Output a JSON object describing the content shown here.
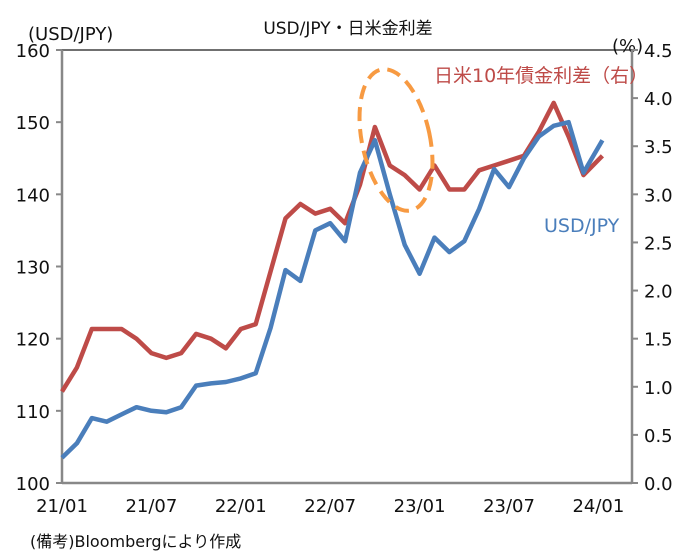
{
  "chart_data": {
    "type": "line",
    "title": "USD/JPY・日米金利差",
    "left_axis": {
      "label": "(USD/JPY)",
      "range": [
        100,
        160
      ],
      "ticks": [
        "100",
        "110",
        "120",
        "130",
        "140",
        "150",
        "160"
      ]
    },
    "right_axis": {
      "label": "(%)",
      "range": [
        0.0,
        4.5
      ],
      "ticks": [
        "0.0",
        "0.5",
        "1.0",
        "1.5",
        "2.0",
        "2.5",
        "3.0",
        "3.5",
        "4.0",
        "4.5"
      ]
    },
    "x_ticks": [
      "21/01",
      "21/07",
      "22/01",
      "22/07",
      "23/01",
      "23/07",
      "24/01"
    ],
    "x_months": [
      "21/01",
      "21/02",
      "21/03",
      "21/04",
      "21/05",
      "21/06",
      "21/07",
      "21/08",
      "21/09",
      "21/10",
      "21/11",
      "21/12",
      "22/01",
      "22/02",
      "22/03",
      "22/04",
      "22/05",
      "22/06",
      "22/07",
      "22/08",
      "22/09",
      "22/10",
      "22/11",
      "22/12",
      "23/01",
      "23/02",
      "23/03",
      "23/04",
      "23/05",
      "23/06",
      "23/07",
      "23/08",
      "23/09",
      "23/10",
      "23/11",
      "23/12",
      "24/01"
    ],
    "series": [
      {
        "name": "USD/JPY",
        "axis": "left",
        "color": "#4a7ebb",
        "values": [
          103.5,
          105.5,
          109,
          108.5,
          109.5,
          110.5,
          110,
          109.8,
          110.5,
          113.5,
          113.8,
          114,
          114.5,
          115.2,
          121.5,
          129.5,
          128,
          135,
          136,
          133.5,
          143,
          147.5,
          140,
          133,
          129,
          134,
          132,
          133.5,
          138,
          143.5,
          141,
          145,
          148,
          149.5,
          150,
          143,
          147.5
        ]
      },
      {
        "name": "日米10年債金利差（右）",
        "axis": "right",
        "color": "#be4b48",
        "values": [
          0.95,
          1.2,
          1.6,
          1.6,
          1.6,
          1.5,
          1.35,
          1.3,
          1.35,
          1.55,
          1.5,
          1.4,
          1.6,
          1.65,
          2.2,
          2.75,
          2.9,
          2.8,
          2.85,
          2.7,
          3.1,
          3.7,
          3.3,
          3.2,
          3.05,
          3.3,
          3.05,
          3.05,
          3.25,
          3.3,
          3.35,
          3.4,
          3.65,
          3.95,
          3.6,
          3.2,
          3.4
        ]
      }
    ],
    "annotation": "dashed ellipse around 22/10–23/01 highlighting divergence",
    "grid": false
  },
  "footnote": "(備考)Bloombergにより作成"
}
